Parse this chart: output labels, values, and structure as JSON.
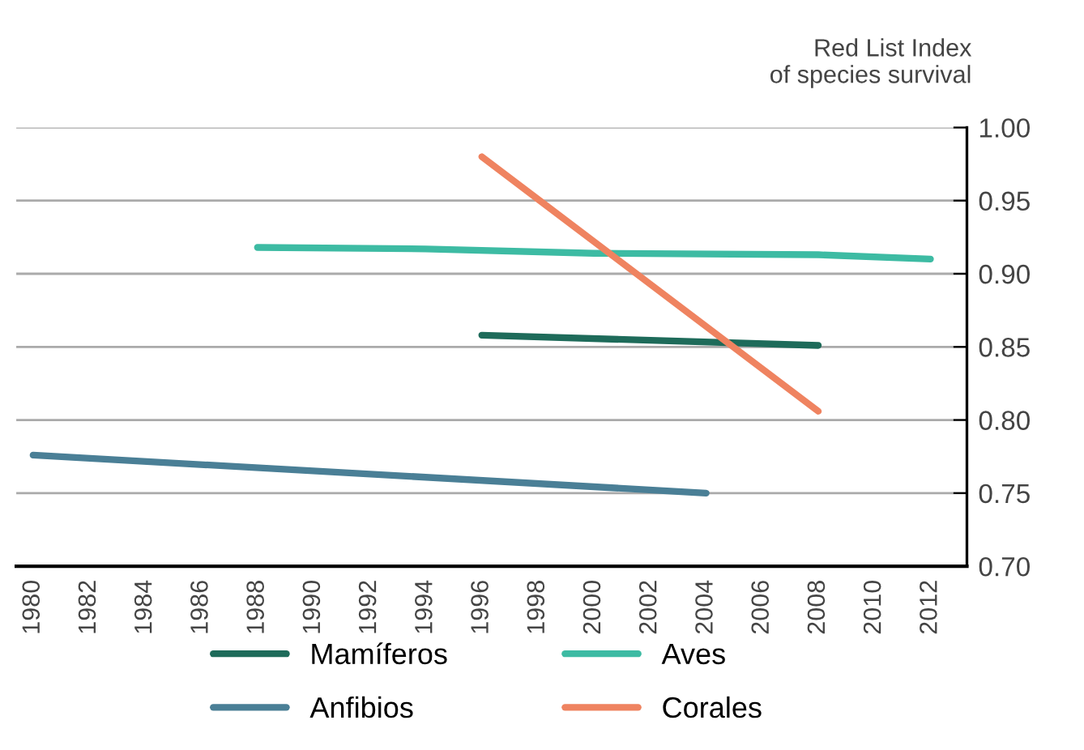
{
  "chart_data": {
    "type": "line",
    "ylabel": "Red List Index\nof species survival",
    "series": [
      {
        "name": "Mamíferos",
        "color": "#1e6b5a",
        "x": [
          1996,
          2008
        ],
        "values": [
          0.858,
          0.851
        ]
      },
      {
        "name": "Anfibios",
        "color": "#4a7f96",
        "x": [
          1980,
          2004
        ],
        "values": [
          0.776,
          0.75
        ]
      },
      {
        "name": "Aves",
        "color": "#3dbba3",
        "x": [
          1988,
          1994,
          2000,
          2008,
          2012
        ],
        "values": [
          0.918,
          0.917,
          0.914,
          0.913,
          0.91
        ]
      },
      {
        "name": "Corales",
        "color": "#ef8360",
        "x": [
          1996,
          2008
        ],
        "values": [
          0.98,
          0.806
        ]
      }
    ],
    "xlim": [
      1979.4,
      2013.3
    ],
    "xticks": [
      1980,
      1982,
      1984,
      1986,
      1988,
      1990,
      1992,
      1994,
      1996,
      1998,
      2000,
      2002,
      2004,
      2006,
      2008,
      2010,
      2012
    ],
    "ylim": [
      0.7,
      1.0
    ],
    "yticks": [
      {
        "value": 0.7,
        "label": "0.70"
      },
      {
        "value": 0.75,
        "label": "0.75"
      },
      {
        "value": 0.8,
        "label": "0.80"
      },
      {
        "value": 0.85,
        "label": "0.85"
      },
      {
        "value": 0.9,
        "label": "0.90"
      },
      {
        "value": 0.95,
        "label": "0.95"
      },
      {
        "value": 1.0,
        "label": "1.00"
      }
    ],
    "grid": "y",
    "legend": "bottom",
    "marker": "none",
    "line_style": "solid"
  }
}
